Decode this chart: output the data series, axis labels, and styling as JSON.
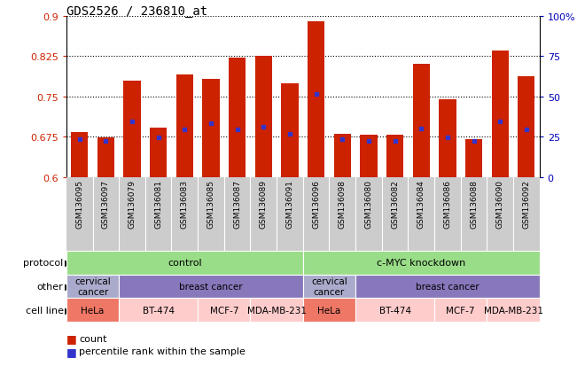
{
  "title": "GDS2526 / 236810_at",
  "samples": [
    "GSM136095",
    "GSM136097",
    "GSM136079",
    "GSM136081",
    "GSM136083",
    "GSM136085",
    "GSM136087",
    "GSM136089",
    "GSM136091",
    "GSM136096",
    "GSM136098",
    "GSM136080",
    "GSM136082",
    "GSM136084",
    "GSM136086",
    "GSM136088",
    "GSM136090",
    "GSM136092"
  ],
  "bar_values": [
    0.684,
    0.674,
    0.779,
    0.692,
    0.791,
    0.783,
    0.822,
    0.825,
    0.775,
    0.89,
    0.68,
    0.679,
    0.679,
    0.81,
    0.745,
    0.67,
    0.835,
    0.787
  ],
  "percentile_values": [
    0.671,
    0.668,
    0.703,
    0.674,
    0.688,
    0.7,
    0.689,
    0.693,
    0.681,
    0.755,
    0.67,
    0.668,
    0.668,
    0.69,
    0.674,
    0.667,
    0.703,
    0.688
  ],
  "ymin": 0.6,
  "ymax": 0.9,
  "yticks": [
    0.6,
    0.675,
    0.75,
    0.825,
    0.9
  ],
  "ytick_labels": [
    "0.6",
    "0.675",
    "0.75",
    "0.825",
    "0.9"
  ],
  "right_yticks": [
    0,
    25,
    50,
    75,
    100
  ],
  "right_ytick_labels": [
    "0",
    "25",
    "50",
    "75",
    "100%"
  ],
  "bar_color": "#CC2200",
  "percentile_color": "#3333CC",
  "grid_color": "#000000",
  "protocol_color": "#99DD88",
  "other_color_cervical": "#AAAACC",
  "other_color_breast": "#8877BB",
  "cell_hela_color": "#EE7766",
  "cell_other_color": "#FFCCCC",
  "row_labels": [
    "protocol",
    "other",
    "cell line"
  ],
  "legend_count_color": "#CC2200",
  "legend_percentile_color": "#3333CC",
  "left_tick_color": "#CC2200",
  "right_tick_color": "#0000BB",
  "xtick_bg_color": "#CCCCCC",
  "protocol_segments": [
    [
      0,
      9,
      "control"
    ],
    [
      9,
      18,
      "c-MYC knockdown"
    ]
  ],
  "other_segments": [
    [
      0,
      2,
      "cervical\ncancer"
    ],
    [
      2,
      9,
      "breast cancer"
    ],
    [
      9,
      11,
      "cervical\ncancer"
    ],
    [
      11,
      18,
      "breast cancer"
    ]
  ],
  "cell_segments": [
    [
      0,
      2,
      "HeLa",
      "hela"
    ],
    [
      2,
      5,
      "BT-474",
      "other"
    ],
    [
      5,
      7,
      "MCF-7",
      "other"
    ],
    [
      7,
      9,
      "MDA-MB-231",
      "other"
    ],
    [
      9,
      11,
      "HeLa",
      "hela"
    ],
    [
      11,
      14,
      "BT-474",
      "other"
    ],
    [
      14,
      16,
      "MCF-7",
      "other"
    ],
    [
      16,
      18,
      "MDA-MB-231",
      "other"
    ]
  ]
}
